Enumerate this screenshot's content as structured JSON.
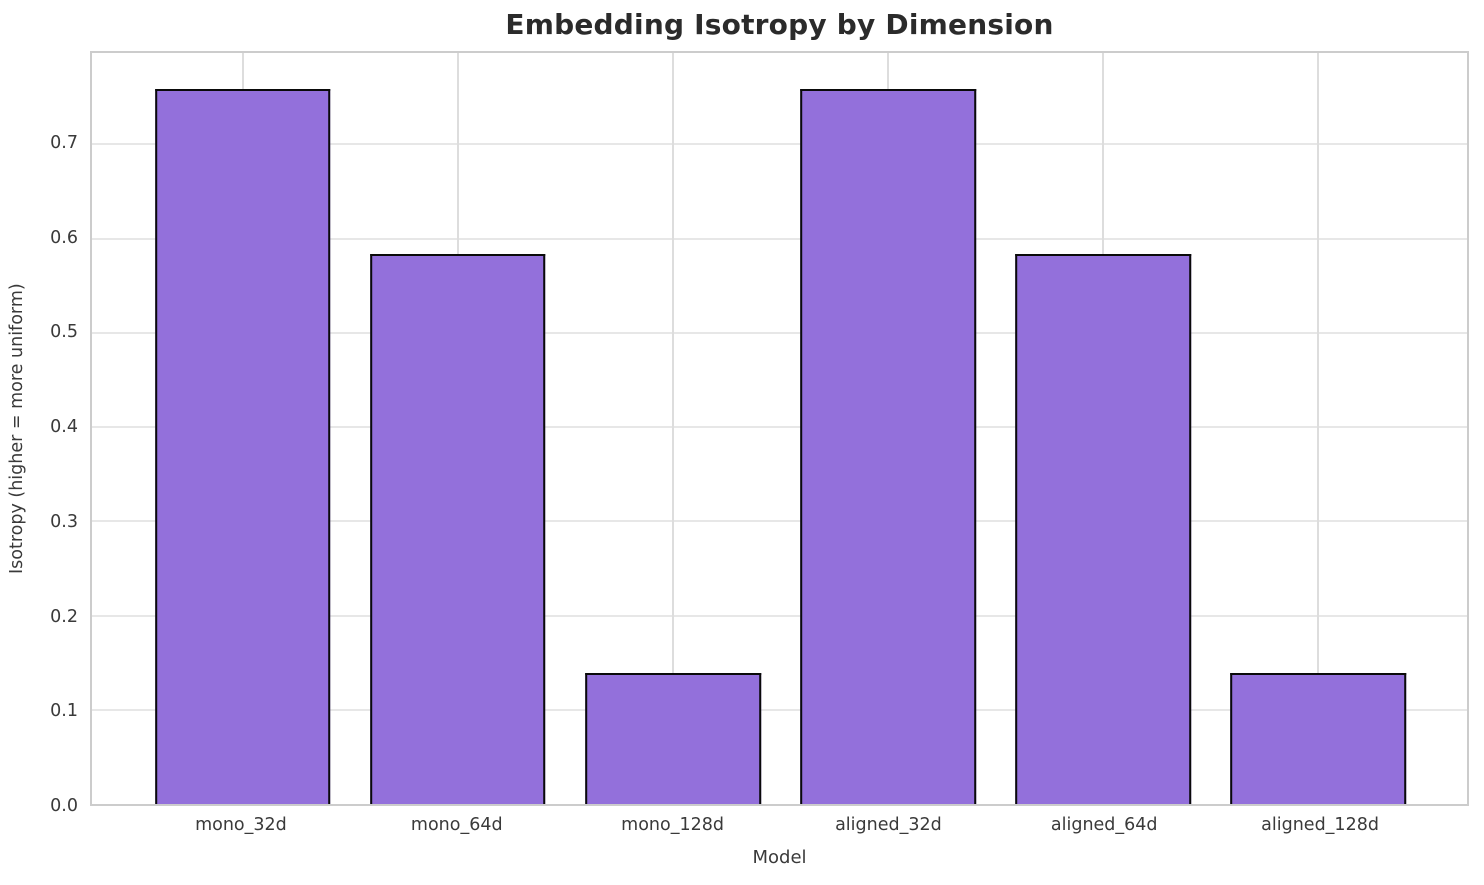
{
  "chart_data": {
    "type": "bar",
    "title": "Embedding Isotropy by Dimension",
    "xlabel": "Model",
    "ylabel": "Isotropy (higher = more uniform)",
    "categories": [
      "mono_32d",
      "mono_64d",
      "mono_128d",
      "aligned_32d",
      "aligned_64d",
      "aligned_128d"
    ],
    "values": [
      0.759,
      0.584,
      0.139,
      0.759,
      0.584,
      0.139
    ],
    "ylim": [
      0,
      0.797
    ],
    "yticks": [
      0.0,
      0.1,
      0.2,
      0.3,
      0.4,
      0.5,
      0.6,
      0.7
    ],
    "ytick_labels": [
      "0.0",
      "0.1",
      "0.2",
      "0.3",
      "0.4",
      "0.5",
      "0.6",
      "0.7"
    ],
    "grid": true,
    "legend": false,
    "bar_color": "#9370DB",
    "bar_edge_color": "#0a0a0a",
    "grid_color": "#e7e7e7",
    "spine_color": "#cccccc",
    "text_color": "#3a3a3a",
    "background": "#ffffff"
  }
}
